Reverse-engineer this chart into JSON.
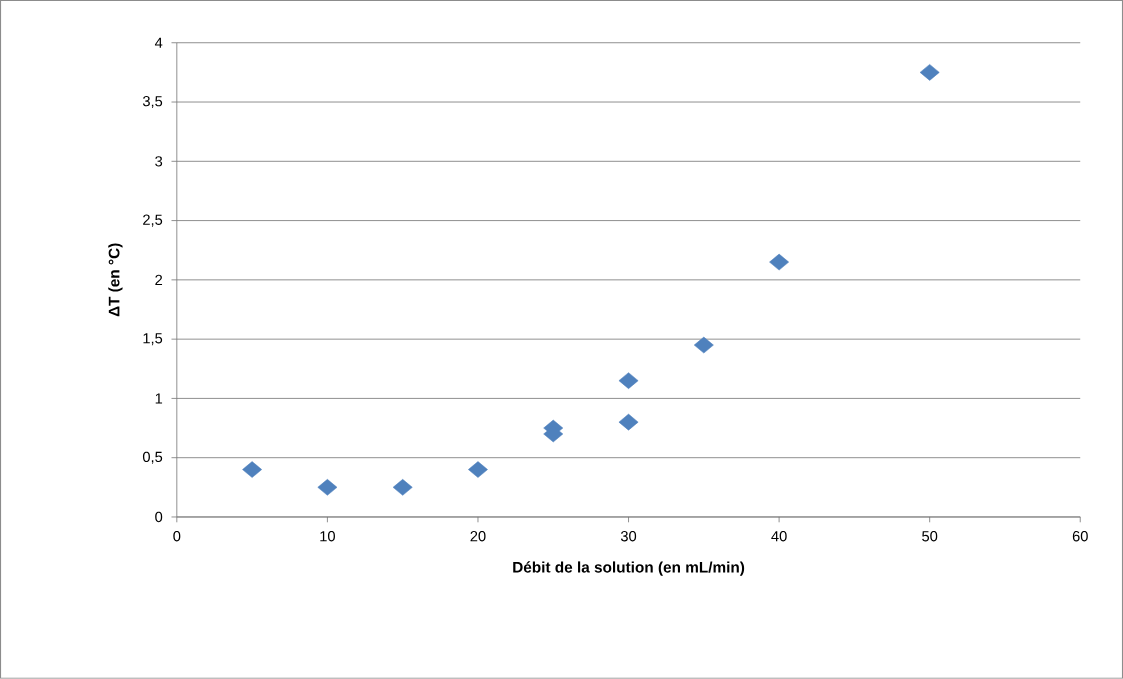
{
  "chart_data": {
    "type": "scatter",
    "xlabel": "Débit de la solution (en mL/min)",
    "ylabel": "ΔT (en °C)",
    "x": [
      5,
      10,
      15,
      20,
      25,
      25,
      30,
      30,
      35,
      40,
      50
    ],
    "values": [
      0.4,
      0.25,
      0.25,
      0.4,
      0.75,
      0.7,
      1.15,
      0.8,
      1.45,
      2.15,
      3.75
    ],
    "color": "#4f81bd",
    "marker": "diamond",
    "xlim": [
      0,
      60
    ],
    "xticks": [
      0,
      10,
      20,
      30,
      40,
      50,
      60
    ],
    "ylim": [
      0,
      4
    ],
    "yticks": [
      0,
      {
        "value": 0.5,
        "label": "0,5"
      },
      1,
      {
        "value": 1.5,
        "label": "1,5"
      },
      2,
      {
        "value": 2.5,
        "label": "2,5"
      },
      3,
      {
        "value": 3.5,
        "label": "3,5"
      },
      4
    ],
    "grid": "y"
  }
}
